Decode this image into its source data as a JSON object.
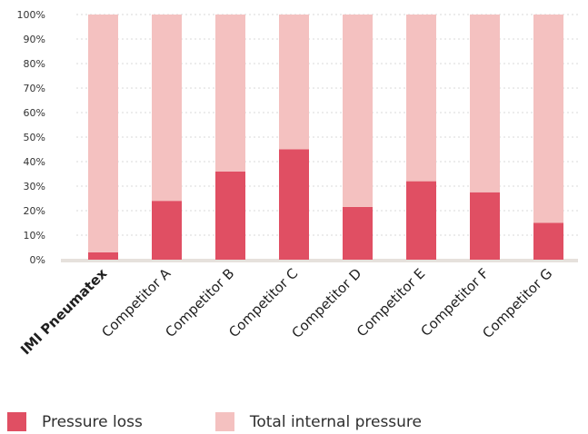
{
  "chart_data": {
    "type": "bar",
    "stacked": true,
    "categories": [
      "IMI Pneumatex",
      "Competitor A",
      "Competitor B",
      "Competitor C",
      "Competitor D",
      "Competitor E",
      "Competitor F",
      "Competitor G"
    ],
    "series": [
      {
        "name": "Pressure loss",
        "color": "#e04f63",
        "values": [
          3,
          24,
          36,
          45,
          21.5,
          32,
          27.5,
          15
        ]
      },
      {
        "name": "Total internal pressure",
        "color": "#f4c1c0",
        "values": [
          97,
          76,
          64,
          55,
          78.5,
          68,
          72.5,
          85
        ]
      }
    ],
    "yticks": [
      "0%",
      "10%",
      "20%",
      "30%",
      "40%",
      "50%",
      "60%",
      "70%",
      "80%",
      "90%",
      "100%"
    ],
    "ylim": [
      0,
      100
    ],
    "highlight_category": "IMI Pneumatex",
    "grid": true,
    "legend_position": "bottom-left"
  }
}
